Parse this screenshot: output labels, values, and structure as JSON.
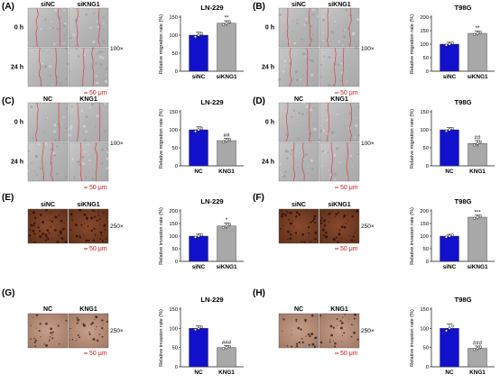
{
  "panels": [
    {
      "label": "(A)",
      "kind": "wound",
      "groups": [
        "siNC",
        "siKNG1"
      ],
      "times": [
        "0 h",
        "24 h"
      ],
      "magnification": "100×",
      "scale_bar": "50 μm"
    },
    {
      "label": "(B)",
      "kind": "wound",
      "groups": [
        "siNC",
        "siKNG1"
      ],
      "times": [
        "0 h",
        "24 h"
      ],
      "magnification": "100×",
      "scale_bar": "50 μm"
    },
    {
      "label": "(C)",
      "kind": "wound",
      "groups": [
        "NC",
        "KNG1"
      ],
      "times": [
        "0 h",
        "24 h"
      ],
      "magnification": "100×",
      "scale_bar": "50 μm"
    },
    {
      "label": "(D)",
      "kind": "wound",
      "groups": [
        "NC",
        "KNG1"
      ],
      "times": [
        "0 h",
        "24 h"
      ],
      "magnification": "100×",
      "scale_bar": "50 μm"
    },
    {
      "label": "(E)",
      "kind": "invasion",
      "groups": [
        "siNC",
        "siKNG1"
      ],
      "magnification": "250×",
      "scale_bar": "50 μm"
    },
    {
      "label": "(F)",
      "kind": "invasion",
      "groups": [
        "siNC",
        "siKNG1"
      ],
      "magnification": "250×",
      "scale_bar": "50 μm"
    },
    {
      "label": "(G)",
      "kind": "invasion",
      "groups": [
        "NC",
        "KNG1"
      ],
      "magnification": "250×",
      "scale_bar": "50 μm"
    },
    {
      "label": "(H)",
      "kind": "invasion",
      "groups": [
        "NC",
        "KNG1"
      ],
      "magnification": "250×",
      "scale_bar": "50 μm"
    }
  ],
  "colors": {
    "control_bar": "#1111cc",
    "treated_bar": "#a8a8a8",
    "scale_bar": "#d01818",
    "wound_line": "#e04040"
  },
  "chart_data": [
    {
      "type": "bar",
      "title": "LN-229",
      "categories": [
        "siNC",
        "siKNG1"
      ],
      "values": [
        100,
        133
      ],
      "errors": [
        8,
        7
      ],
      "significance": [
        "",
        "**"
      ],
      "ylabel": "Relative migration rate (%)",
      "ylim": [
        0,
        150
      ],
      "yticks": [
        0,
        50,
        100,
        150
      ]
    },
    {
      "type": "bar",
      "title": "T98G",
      "categories": [
        "siNC",
        "siKNG1"
      ],
      "values": [
        100,
        140
      ],
      "errors": [
        7,
        8
      ],
      "significance": [
        "",
        "**"
      ],
      "ylabel": "Relative migration rate (%)",
      "ylim": [
        0,
        200
      ],
      "yticks": [
        0,
        50,
        100,
        150,
        200
      ]
    },
    {
      "type": "bar",
      "title": "LN-229",
      "categories": [
        "NC",
        "KNG1"
      ],
      "values": [
        100,
        70
      ],
      "errors": [
        8,
        6
      ],
      "significance": [
        "",
        "##"
      ],
      "ylabel": "Relative migration rate (%)",
      "ylim": [
        0,
        150
      ],
      "yticks": [
        0,
        50,
        100,
        150
      ]
    },
    {
      "type": "bar",
      "title": "T98G",
      "categories": [
        "NC",
        "KNG1"
      ],
      "values": [
        100,
        62
      ],
      "errors": [
        6,
        8
      ],
      "significance": [
        "",
        "##"
      ],
      "ylabel": "Relative migration rate (%)",
      "ylim": [
        0,
        150
      ],
      "yticks": [
        0,
        50,
        100,
        150
      ]
    },
    {
      "type": "bar",
      "title": "LN-229",
      "categories": [
        "siNC",
        "siKNG1"
      ],
      "values": [
        100,
        140
      ],
      "errors": [
        8,
        12
      ],
      "significance": [
        "",
        "*"
      ],
      "ylabel": "Relative invasion rate (%)",
      "ylim": [
        0,
        200
      ],
      "yticks": [
        0,
        50,
        100,
        150,
        200
      ]
    },
    {
      "type": "bar",
      "title": "T98G",
      "categories": [
        "siNC",
        "siKNG1"
      ],
      "values": [
        100,
        175
      ],
      "errors": [
        7,
        8
      ],
      "significance": [
        "",
        "***"
      ],
      "ylabel": "Relative invasion rate (%)",
      "ylim": [
        0,
        200
      ],
      "yticks": [
        0,
        50,
        100,
        150,
        200
      ]
    },
    {
      "type": "bar",
      "title": "LN-229",
      "categories": [
        "NC",
        "KNG1"
      ],
      "values": [
        100,
        50
      ],
      "errors": [
        6,
        5
      ],
      "significance": [
        "",
        "###"
      ],
      "ylabel": "Relative invasion rate (%)",
      "ylim": [
        0,
        150
      ],
      "yticks": [
        0,
        50,
        100,
        150
      ]
    },
    {
      "type": "bar",
      "title": "T98G",
      "categories": [
        "NC",
        "KNG1"
      ],
      "values": [
        100,
        48
      ],
      "errors": [
        11,
        6
      ],
      "significance": [
        "",
        "###"
      ],
      "ylabel": "Relative invasion rate (%)",
      "ylim": [
        0,
        150
      ],
      "yticks": [
        0,
        50,
        100,
        150
      ]
    }
  ]
}
